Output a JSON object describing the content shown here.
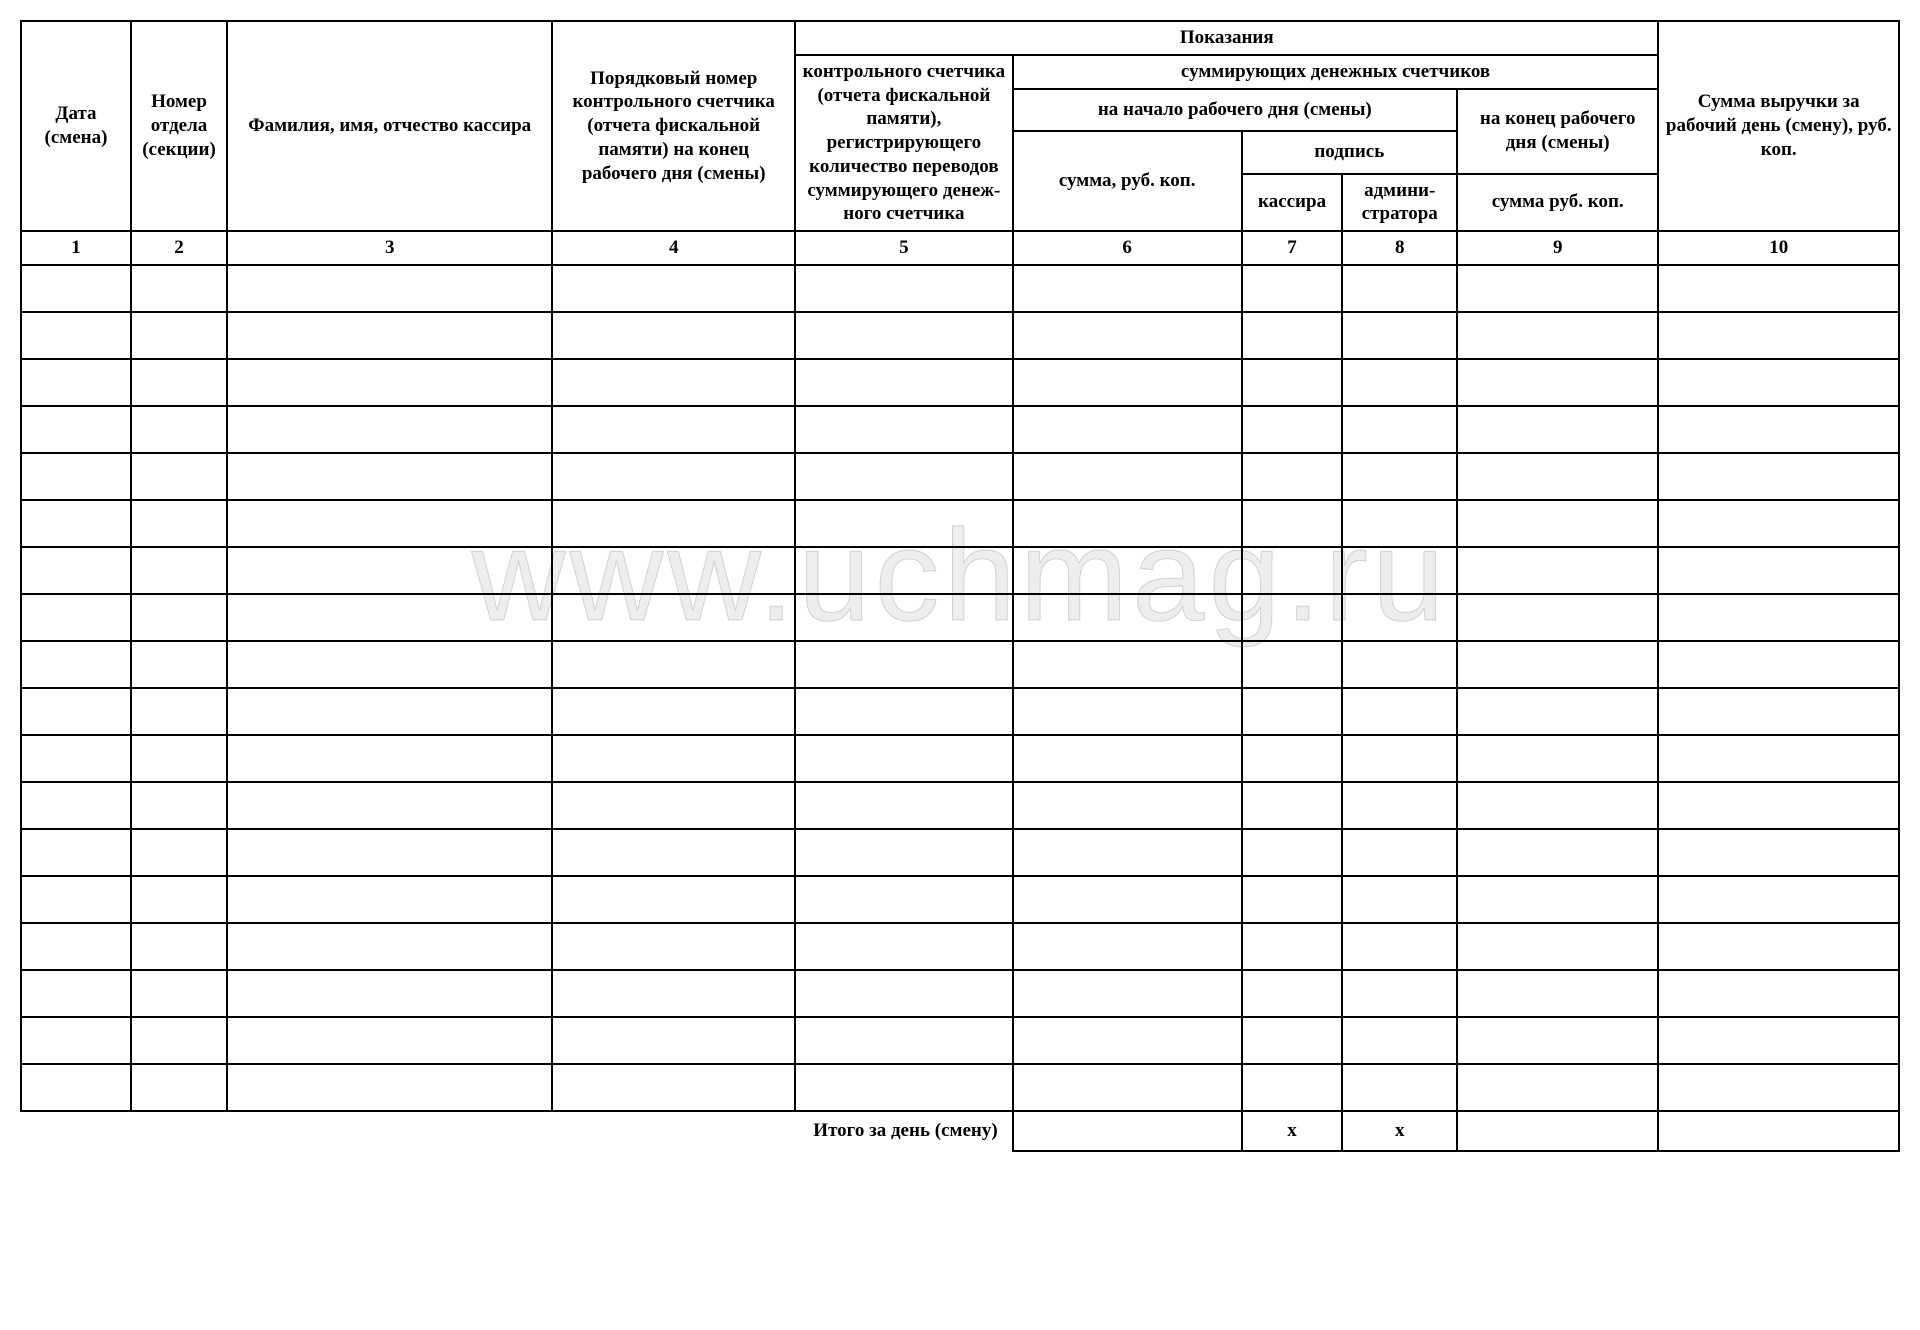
{
  "watermark_text": "www.uchmag.ru",
  "table": {
    "column_widths_pct": [
      4.0,
      3.6,
      12.0,
      9.2,
      8.2,
      8.5,
      3.8,
      4.2,
      7.6,
      8.9
    ],
    "header_fontsize": 19,
    "border_color": "#000000",
    "background_color": "#ffffff",
    "text_color": "#000000",
    "font_family": "Times New Roman",
    "headers": {
      "col1": "Дата (смена)",
      "col2": "Номер отдела (сек­ции)",
      "col3": "Фамилия, имя, отчество кассира",
      "col4": "Порядковый но­мер контрольного счетчика (отчета фискальной памяти) на конец рабочего дня (смены)",
      "col5": "контрольного счетчика (отчета фис­кальной памяти), регистрирующего количество пе­реводов сумми­рующего денеж­ного счетчика",
      "group_top": "Показания",
      "group_sum": "суммирующих денежных счетчиков",
      "sub_start": "на начало рабочего дня (смены)",
      "sub_end": "на конец рабочего дня (смены)",
      "col6": "сумма, руб. коп.",
      "sub_sign": "подпись",
      "col7": "кассира",
      "col8": "админи­стратора",
      "col9": "сумма руб. коп.",
      "col10": "Сумма выручки за рабочий день (смену), руб. коп."
    },
    "column_numbers": [
      "1",
      "2",
      "3",
      "4",
      "5",
      "6",
      "7",
      "8",
      "9",
      "10"
    ],
    "blank_rows": 18,
    "totals": {
      "label": "Итого за день (смену)",
      "col6": "",
      "col7": "х",
      "col8": "х",
      "col9": "",
      "col10": ""
    }
  }
}
